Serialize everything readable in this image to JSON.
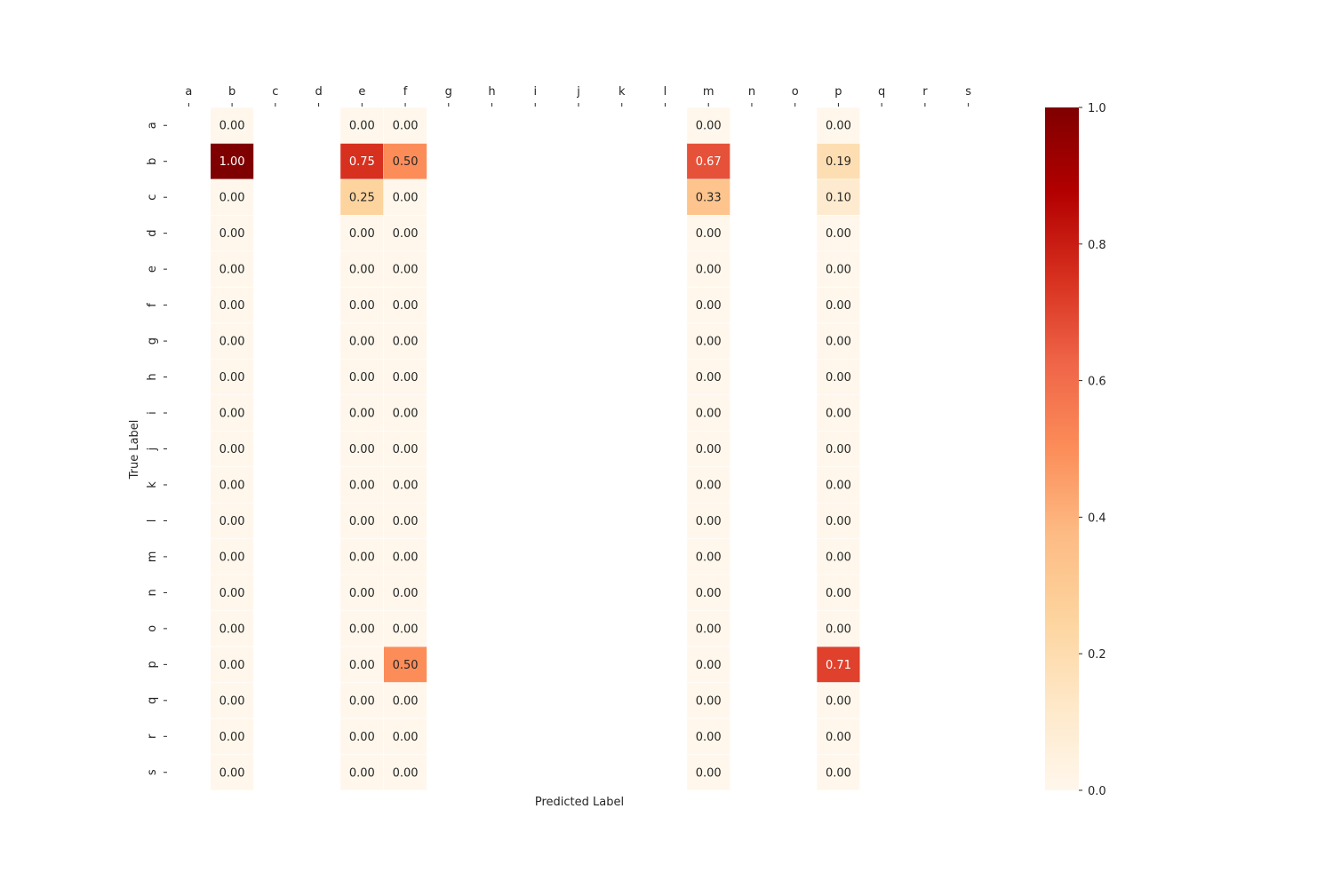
{
  "chart_data": {
    "type": "heatmap",
    "title": "",
    "xlabel": "Predicted Label",
    "ylabel": "True Label",
    "x_categories": [
      "a",
      "b",
      "c",
      "d",
      "e",
      "f",
      "g",
      "h",
      "i",
      "j",
      "k",
      "l",
      "m",
      "n",
      "o",
      "p",
      "q",
      "r",
      "s"
    ],
    "y_categories": [
      "a",
      "b",
      "c",
      "d",
      "e",
      "f",
      "g",
      "h",
      "i",
      "j",
      "k",
      "l",
      "m",
      "n",
      "o",
      "p",
      "q",
      "r",
      "s"
    ],
    "x_ticks_position": "top",
    "colormap": "OrRd",
    "colorbar": {
      "min": 0.0,
      "max": 1.0,
      "ticks": [
        "0.0",
        "0.2",
        "0.4",
        "0.6",
        "0.8",
        "1.0"
      ]
    },
    "columns_with_values": [
      "b",
      "e",
      "f",
      "m",
      "p"
    ],
    "cells": {
      "b": [
        "0.00",
        "1.00",
        "0.00",
        "0.00",
        "0.00",
        "0.00",
        "0.00",
        "0.00",
        "0.00",
        "0.00",
        "0.00",
        "0.00",
        "0.00",
        "0.00",
        "0.00",
        "0.00",
        "0.00",
        "0.00",
        "0.00"
      ],
      "e": [
        "0.00",
        "0.75",
        "0.25",
        "0.00",
        "0.00",
        "0.00",
        "0.00",
        "0.00",
        "0.00",
        "0.00",
        "0.00",
        "0.00",
        "0.00",
        "0.00",
        "0.00",
        "0.00",
        "0.00",
        "0.00",
        "0.00"
      ],
      "f": [
        "0.00",
        "0.50",
        "0.00",
        "0.00",
        "0.00",
        "0.00",
        "0.00",
        "0.00",
        "0.00",
        "0.00",
        "0.00",
        "0.00",
        "0.00",
        "0.00",
        "0.00",
        "0.50",
        "0.00",
        "0.00",
        "0.00"
      ],
      "m": [
        "0.00",
        "0.67",
        "0.33",
        "0.00",
        "0.00",
        "0.00",
        "0.00",
        "0.00",
        "0.00",
        "0.00",
        "0.00",
        "0.00",
        "0.00",
        "0.00",
        "0.00",
        "0.00",
        "0.00",
        "0.00",
        "0.00"
      ],
      "p": [
        "0.00",
        "0.19",
        "0.10",
        "0.00",
        "0.00",
        "0.00",
        "0.00",
        "0.00",
        "0.00",
        "0.00",
        "0.00",
        "0.00",
        "0.00",
        "0.00",
        "0.00",
        "0.71",
        "0.00",
        "0.00",
        "0.00"
      ]
    }
  }
}
